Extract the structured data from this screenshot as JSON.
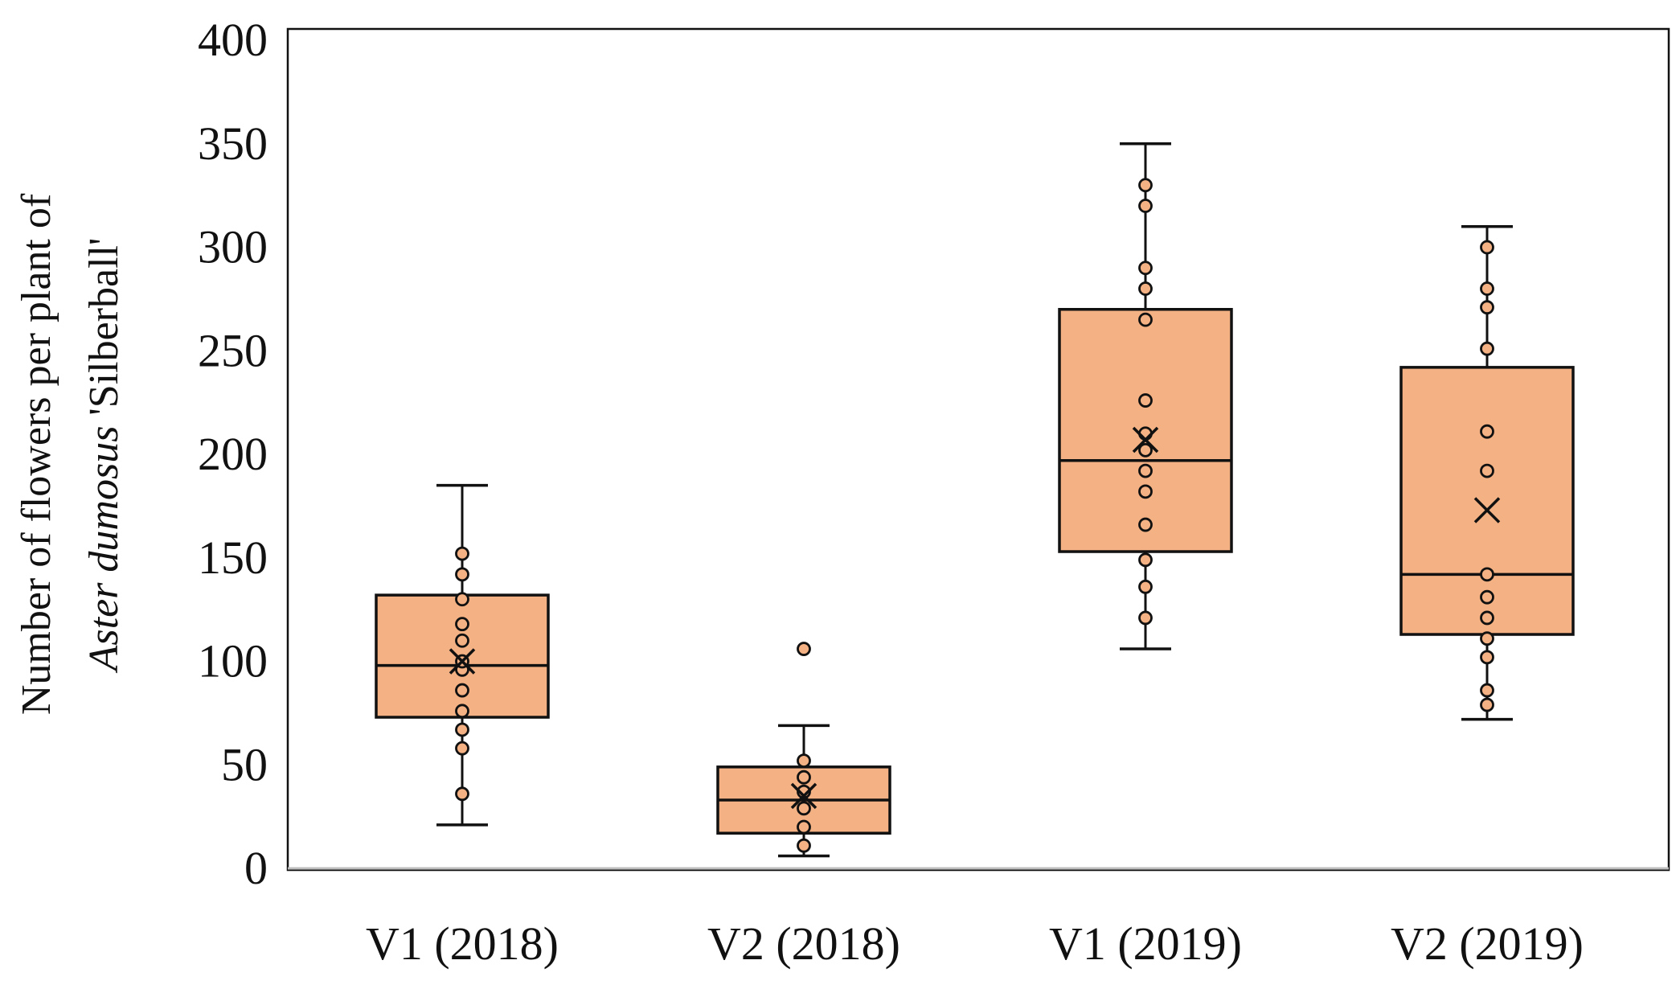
{
  "colors": {
    "box_fill": "#f4b183",
    "stroke": "#111111",
    "background": "#ffffff",
    "axis_bg": "#ffffff"
  },
  "chart_data": {
    "type": "boxplot",
    "title": "",
    "xlabel": "",
    "ylabel_line1": "Number of flowers per plant of",
    "ylabel_line2_italic": "Aster dumosus",
    "ylabel_line2_plain": " 'Silberball'",
    "ylim": [
      0,
      400
    ],
    "yticks": [
      0,
      50,
      100,
      150,
      200,
      250,
      300,
      350,
      400
    ],
    "categories": [
      "V1 (2018)",
      "V2 (2018)",
      "V1 (2019)",
      "V2 (2019)"
    ],
    "groups": [
      {
        "label": "V1 (2018)",
        "whisker_low": 21,
        "q1": 73,
        "median": 98,
        "q3": 132,
        "whisker_high": 185,
        "mean": 100,
        "points": [
          36,
          58,
          67,
          76,
          86,
          96,
          100,
          110,
          118,
          130,
          142,
          152
        ],
        "outliers": []
      },
      {
        "label": "V2 (2018)",
        "whisker_low": 6,
        "q1": 17,
        "median": 33,
        "q3": 49,
        "whisker_high": 69,
        "mean": 35,
        "points": [
          11,
          20,
          29,
          37,
          44,
          52
        ],
        "outliers": [
          106
        ]
      },
      {
        "label": "V1 (2019)",
        "whisker_low": 106,
        "q1": 153,
        "median": 197,
        "q3": 270,
        "whisker_high": 350,
        "mean": 207,
        "points": [
          121,
          136,
          149,
          166,
          182,
          192,
          202,
          210,
          226,
          265,
          280,
          290,
          320,
          330
        ],
        "outliers": []
      },
      {
        "label": "V2 (2019)",
        "whisker_low": 72,
        "q1": 113,
        "median": 142,
        "q3": 242,
        "whisker_high": 310,
        "mean": 173,
        "points": [
          79,
          86,
          102,
          111,
          121,
          131,
          142,
          192,
          211,
          251,
          271,
          280,
          300
        ],
        "outliers": []
      }
    ]
  }
}
